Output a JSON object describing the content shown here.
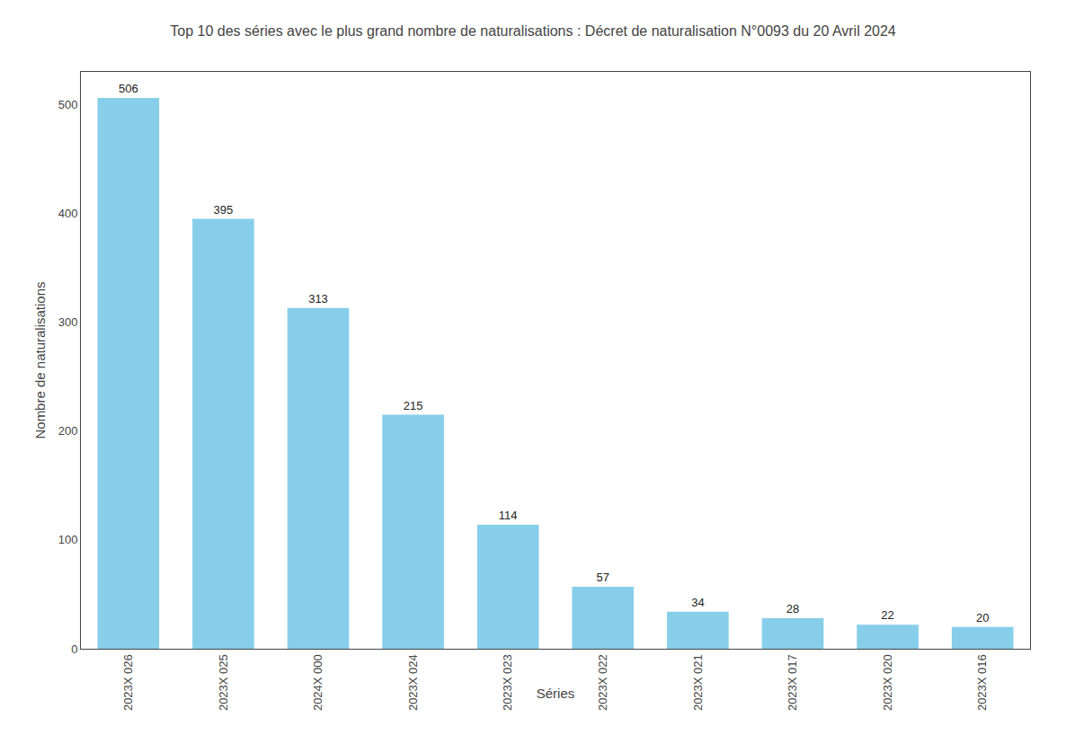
{
  "chart_data": {
    "type": "bar",
    "title": "Top 10 des séries avec le plus grand nombre de naturalisations : Décret de naturalisation N°0093 du 20 Avril 2024",
    "xlabel": "Séries",
    "ylabel": "Nombre de naturalisations",
    "categories": [
      "2023X 026",
      "2023X 025",
      "2024X 000",
      "2023X 024",
      "2023X 023",
      "2023X 022",
      "2023X 021",
      "2023X 017",
      "2023X 020",
      "2023X 016"
    ],
    "values": [
      506,
      395,
      313,
      215,
      114,
      57,
      34,
      28,
      22,
      20
    ],
    "color": "#87CEEB",
    "ylim": [
      0,
      530
    ],
    "yticks": [
      0,
      100,
      200,
      300,
      400,
      500
    ],
    "grid": false,
    "data_labels": true
  }
}
